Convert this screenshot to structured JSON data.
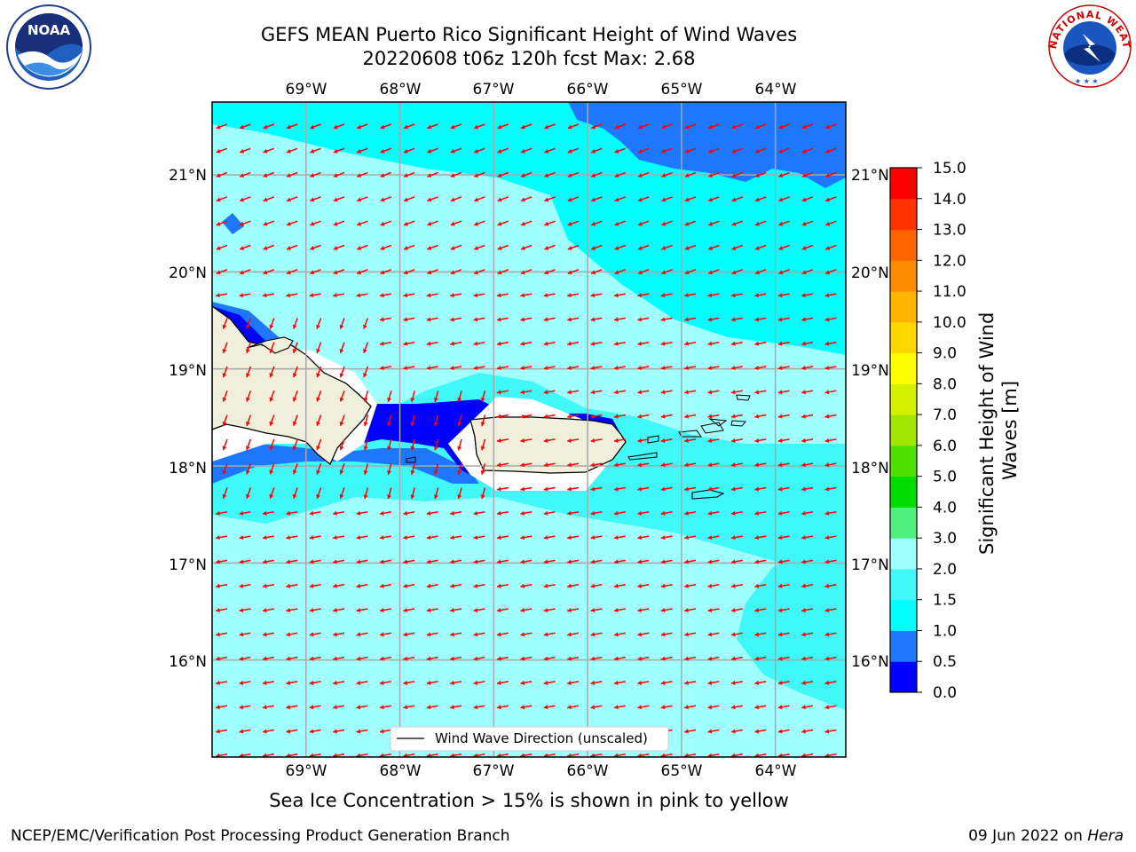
{
  "header": {
    "title_line1": "GEFS MEAN Puerto Rico Significant Height of Wind Waves",
    "title_line2": "20220608 t06z 120h fcst   Max: 2.68"
  },
  "logos": {
    "left": "noaa-logo",
    "left_text": "NOAA",
    "right": "nws-logo",
    "right_text": "NATIONAL WEATHER SERVICE"
  },
  "map": {
    "lon_labels": [
      "69°W",
      "68°W",
      "67°W",
      "66°W",
      "65°W",
      "64°W"
    ],
    "lat_labels": [
      "21°N",
      "20°N",
      "19°N",
      "18°N",
      "17°N",
      "16°N"
    ],
    "lon_range": [
      -70.0,
      -63.25
    ],
    "lat_range": [
      15.0,
      21.75
    ],
    "arrow_color": "#ff0000",
    "legend_label": "Wind Wave Direction (unscaled)"
  },
  "colorbar": {
    "label": "Significant Height of Wind Waves [m]",
    "tick_labels": [
      "0.0",
      "0.5",
      "1.0",
      "1.5",
      "2.0",
      "3.0",
      "4.0",
      "5.0",
      "6.0",
      "7.0",
      "8.0",
      "9.0",
      "10.0",
      "11.0",
      "12.0",
      "13.0",
      "14.0",
      "15.0"
    ],
    "colors": [
      "#0000ff",
      "#1e78ff",
      "#00ffff",
      "#40f8f8",
      "#a0ffff",
      "#50f080",
      "#00dc00",
      "#50e000",
      "#a0e600",
      "#d2f000",
      "#ffff00",
      "#ffd700",
      "#ffb400",
      "#ff8c00",
      "#ff6400",
      "#ff3200",
      "#ff0000"
    ]
  },
  "caption": "Sea Ice Concentration > 15% is shown in pink to yellow",
  "footer": {
    "left": "NCEP/EMC/Verification Post Processing Product Generation Branch",
    "right_prefix": "09 Jun 2022 on ",
    "right_host": "Hera"
  }
}
